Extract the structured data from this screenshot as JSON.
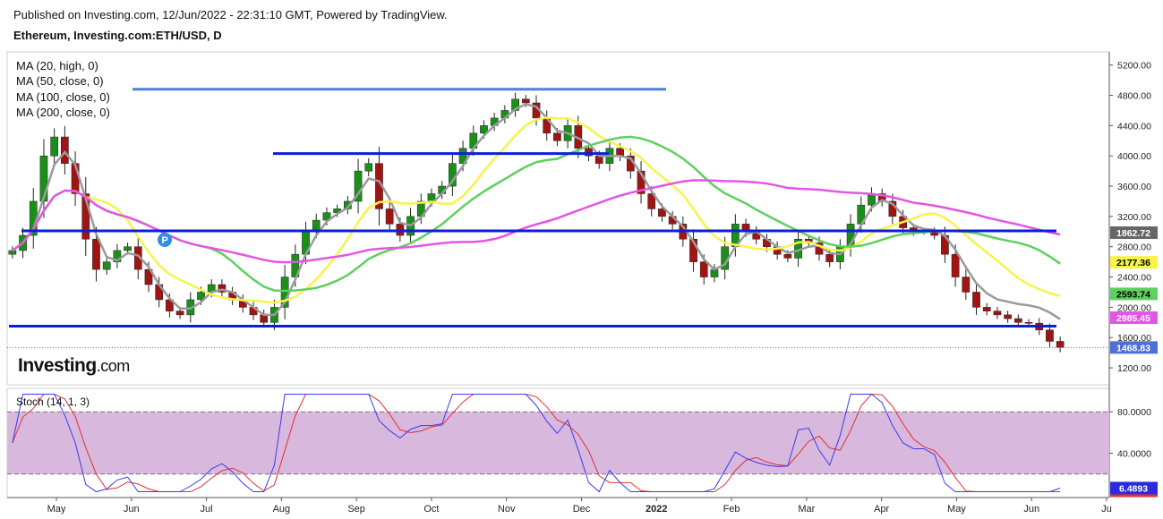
{
  "header": {
    "published": "Published on Investing.com, 12/Jun/2022 - 22:31:10 GMT, Powered by TradingView.",
    "symbol": "Ethereum, Investing.com:ETH/USD, D"
  },
  "legend": {
    "ma20": "MA (20, high, 0)",
    "ma50": "MA (50, close, 0)",
    "ma100": "MA (100, close, 0)",
    "ma200": "MA (200, close, 0)"
  },
  "logo": {
    "main": "Investing",
    "suffix": ".com"
  },
  "marker": {
    "letter": "P"
  },
  "colors": {
    "candle_up": "#1a8f1a",
    "candle_down": "#a01414",
    "ma20": "#9a9a9a",
    "ma50": "#f7f34a",
    "ma100": "#5ed05e",
    "ma200": "#e455e4",
    "hline": "#0a1fd6",
    "hline_light": "#4f7fe0",
    "stoch_band": "#d9b8de",
    "stoch_k": "#3a3aee",
    "stoch_d": "#e03030"
  },
  "chart_data": [
    {
      "type": "line",
      "title": "Ethereum, Investing.com:ETH/USD, D",
      "x_axis": [
        "May",
        "Jun",
        "Jul",
        "Aug",
        "Sep",
        "Oct",
        "Nov",
        "Dec",
        "2022",
        "Feb",
        "Mar",
        "Apr",
        "May",
        "Jun",
        "Ju"
      ],
      "y_ticks": [
        "5200.00",
        "4800.00",
        "4400.00",
        "4000.00",
        "3600.00",
        "3200.00",
        "2800.00",
        "2400.00",
        "2000.00",
        "1600.00",
        "1200.00"
      ],
      "price_close_approx": [
        2750,
        2950,
        3400,
        4000,
        4250,
        3900,
        3500,
        2900,
        2500,
        2600,
        2750,
        2800,
        2500,
        2300,
        2100,
        1950,
        1900,
        2100,
        2200,
        2300,
        2200,
        2100,
        2000,
        1900,
        1800,
        2000,
        2400,
        2700,
        3000,
        3150,
        3250,
        3300,
        3400,
        3800,
        3900,
        3300,
        3100,
        2950,
        3200,
        3400,
        3500,
        3600,
        3900,
        4100,
        4300,
        4400,
        4500,
        4600,
        4750,
        4700,
        4500,
        4300,
        4200,
        4400,
        4100,
        4000,
        3900,
        4100,
        4000,
        3800,
        3500,
        3300,
        3200,
        3100,
        2900,
        2600,
        2400,
        2500,
        2800,
        3100,
        3000,
        2900,
        2800,
        2700,
        2650,
        2900,
        2850,
        2700,
        2600,
        2800,
        3100,
        3350,
        3500,
        3400,
        3200,
        3050,
        3000,
        3000,
        2950,
        2700,
        2400,
        2200,
        2000,
        1950,
        1900,
        1850,
        1800,
        1790,
        1700,
        1550,
        1470
      ],
      "series": [
        {
          "name": "MA (20, high, 0)",
          "last": 1862.72
        },
        {
          "name": "MA (50, close, 0)",
          "last": 2177.36
        },
        {
          "name": "MA (100, close, 0)",
          "last": 2593.74
        },
        {
          "name": "MA (200, close, 0)",
          "last": 2985.45
        }
      ],
      "last_price": 1468.83,
      "price_labels": [
        "2985.45",
        "2593.74",
        "2177.36",
        "1862.72",
        "1468.83"
      ],
      "horizontal_levels": [
        4880,
        4030,
        3010,
        1750
      ],
      "ylim": [
        1000,
        5350
      ]
    },
    {
      "type": "line",
      "title": "Stoch (14, 1, 3)",
      "y_ticks": [
        "80.0000",
        "40.0000"
      ],
      "band": [
        20,
        80
      ],
      "last_value": 6.4893,
      "last_label": "6.4893",
      "ylim": [
        0,
        100
      ]
    }
  ]
}
